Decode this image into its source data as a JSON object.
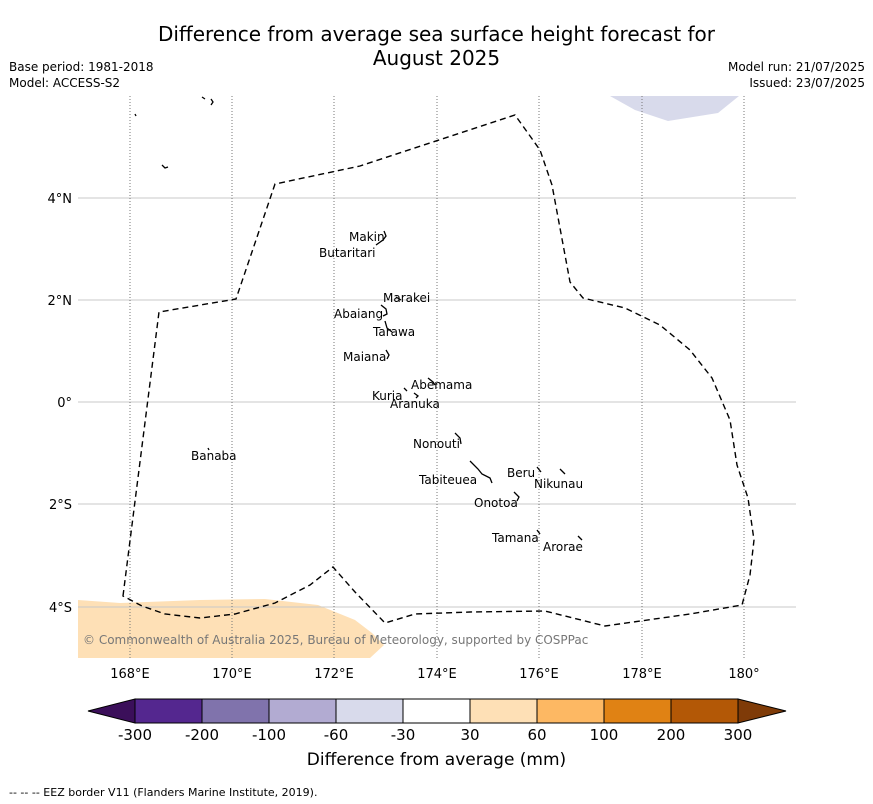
{
  "title_line1": "Difference from average sea surface height forecast for",
  "title_line2": "August 2025",
  "meta": {
    "base_period": "Base period: 1981-2018",
    "model": "Model: ACCESS-S2",
    "model_run": "Model run: 21/07/2025",
    "issued": "Issued: 23/07/2025"
  },
  "map": {
    "lon_labels": [
      "168°E",
      "170°E",
      "172°E",
      "174°E",
      "176°E",
      "178°E",
      "180°"
    ],
    "lat_labels": [
      "4°N",
      "2°N",
      "0°",
      "2°S",
      "4°S"
    ],
    "copyright": "© Commonwealth of Australia 2025, Bureau of Meteorology, supported by COSPPac",
    "islands": [
      {
        "name": "Makin"
      },
      {
        "name": "Butaritari"
      },
      {
        "name": "Marakei"
      },
      {
        "name": "Abaiang"
      },
      {
        "name": "Tarawa"
      },
      {
        "name": "Maiana"
      },
      {
        "name": "Abemama"
      },
      {
        "name": "Kuria"
      },
      {
        "name": "Aranuka"
      },
      {
        "name": "Nonouti"
      },
      {
        "name": "Banaba"
      },
      {
        "name": "Tabiteuea"
      },
      {
        "name": "Beru"
      },
      {
        "name": "Nikunau"
      },
      {
        "name": "Onotoa"
      },
      {
        "name": "Tamana"
      },
      {
        "name": "Arorae"
      }
    ]
  },
  "colorbar": {
    "title": "Difference from average (mm)",
    "ticks": [
      "-300",
      "-200",
      "-100",
      "-60",
      "-30",
      "30",
      "60",
      "100",
      "200",
      "300"
    ],
    "colors": {
      "below": "#3b0f5a",
      "bins": [
        "#54278f",
        "#8073ac",
        "#b2abd2",
        "#d8daeb",
        "#ffffff",
        "#fee0b6",
        "#fdb863",
        "#e08214",
        "#b35806"
      ],
      "above": "#7f3b08"
    }
  },
  "footnote": "--  --  -- EEZ border V11 (Flanders Marine Institute, 2019)."
}
